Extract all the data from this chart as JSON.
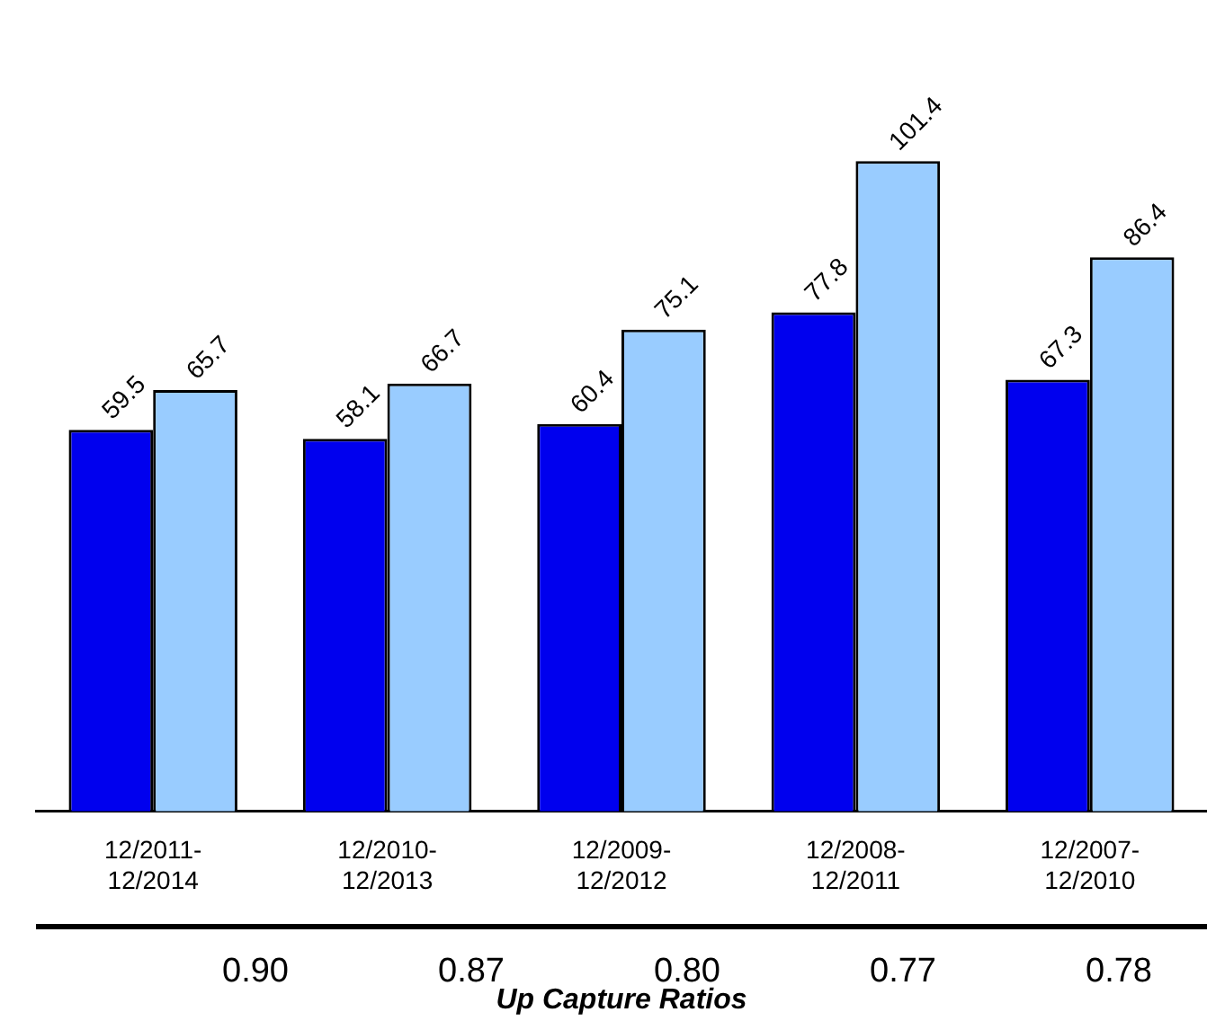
{
  "chart_data": {
    "type": "bar",
    "categories": [
      "12/2011-12/2014",
      "12/2010-12/2013",
      "12/2009-12/2012",
      "12/2008-12/2011",
      "12/2007-12/2010"
    ],
    "series": [
      {
        "color": "#0000ee",
        "values": [
          59.5,
          58.1,
          60.4,
          77.8,
          67.3
        ]
      },
      {
        "color": "#99ccff",
        "values": [
          65.7,
          66.7,
          75.1,
          101.4,
          86.4
        ]
      }
    ],
    "data_labels": true,
    "grid": false,
    "legend": false,
    "xlabel": "Up Capture Ratios",
    "annotations": [
      "0.90",
      "0.87",
      "0.80",
      "0.77",
      "0.78"
    ]
  }
}
